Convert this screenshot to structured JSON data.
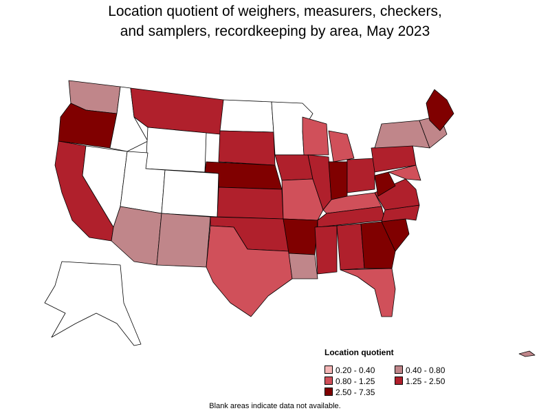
{
  "title_line1": "Location quotient of weighers, measurers, checkers,",
  "title_line2": "and samplers, recordkeeping by area, May 2023",
  "legend": {
    "title": "Location quotient",
    "items": [
      {
        "label": "0.20 - 0.40",
        "color": "#f4b6b6"
      },
      {
        "label": "0.40 - 0.80",
        "color": "#c0868a"
      },
      {
        "label": "0.80 - 1.25",
        "color": "#d0505a"
      },
      {
        "label": "1.25 - 2.50",
        "color": "#b0202c"
      },
      {
        "label": "2.50 - 7.35",
        "color": "#800000"
      }
    ]
  },
  "footnote": "Blank areas indicate data not available.",
  "colors": {
    "no_data": "#ffffff",
    "border": "#000000"
  }
}
